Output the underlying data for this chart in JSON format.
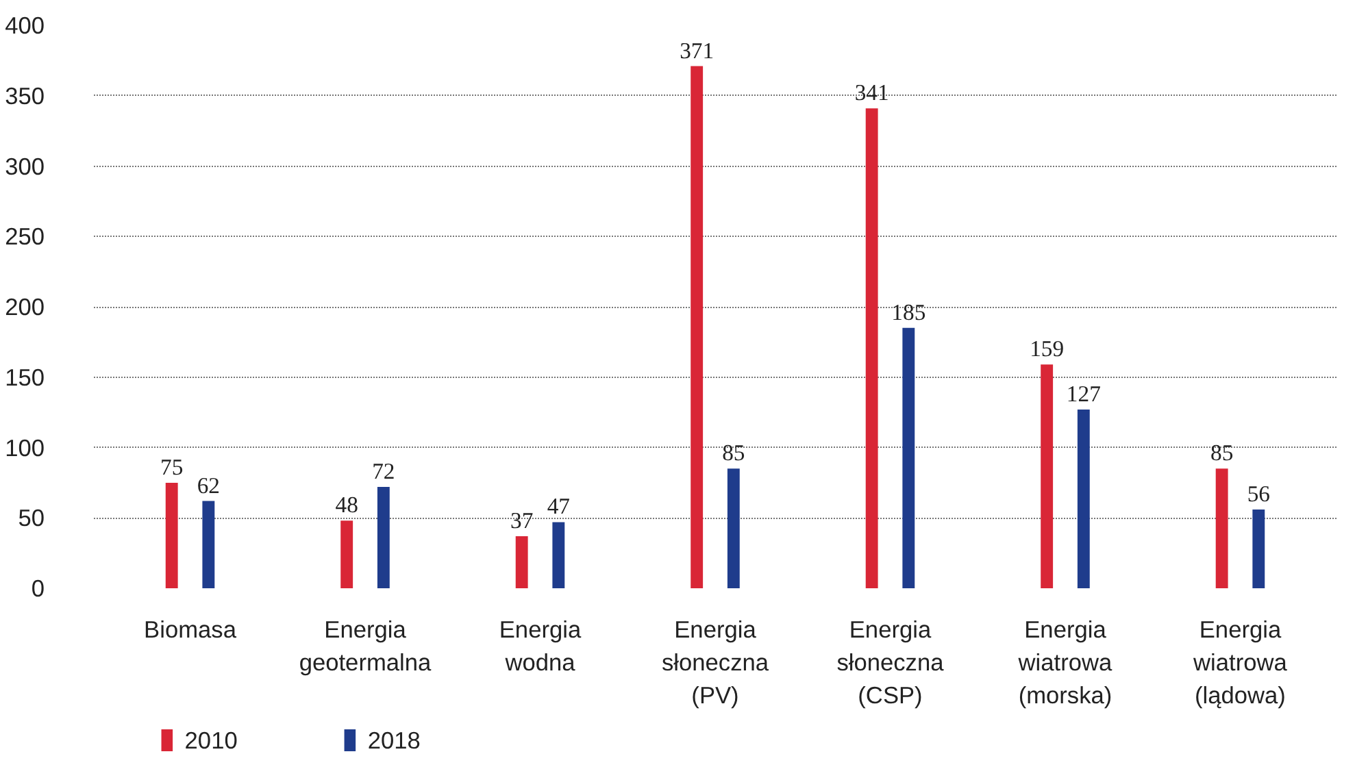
{
  "chart_data": {
    "type": "bar",
    "categories": [
      "Biomasa",
      "Energia geotermalna",
      "Energia wodna",
      "Energia słoneczna (PV)",
      "Energia słoneczna (CSP)",
      "Energia wiatrowa (morska)",
      "Energia wiatrowa (lądowa)"
    ],
    "series": [
      {
        "name": "2010",
        "color": "#d92636",
        "values": [
          75,
          48,
          37,
          371,
          341,
          159,
          85
        ]
      },
      {
        "name": "2018",
        "color": "#1f3c8c",
        "values": [
          62,
          72,
          47,
          85,
          185,
          127,
          56
        ]
      }
    ],
    "ylim": [
      0,
      400
    ],
    "yticks": [
      0,
      50,
      100,
      150,
      200,
      250,
      300,
      350,
      400
    ],
    "grid": "y",
    "legend": "bottom left",
    "data_labels": true
  }
}
